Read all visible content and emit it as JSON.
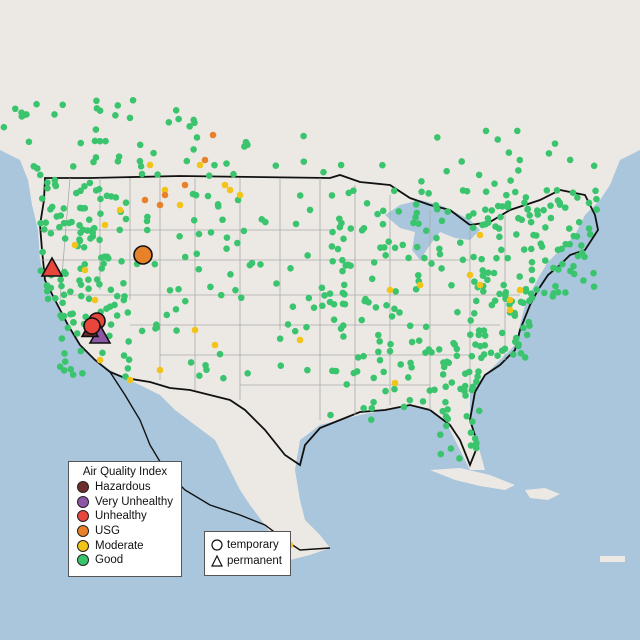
{
  "legend": {
    "title": "Air Quality Index",
    "categories": [
      {
        "label": "Hazardous",
        "color": "#6d2d2a"
      },
      {
        "label": "Very Unhealthy",
        "color": "#8e57a5"
      },
      {
        "label": "Unhealthy",
        "color": "#e8453c"
      },
      {
        "label": "USG",
        "color": "#e8822a"
      },
      {
        "label": "Moderate",
        "color": "#f2c318"
      },
      {
        "label": "Good",
        "color": "#3bc46e"
      }
    ]
  },
  "type_legend": {
    "items": [
      {
        "label": "temporary",
        "shape": "circle"
      },
      {
        "label": "permanent",
        "shape": "triangle"
      }
    ]
  },
  "map": {
    "ocean_color": "#a9c6dc",
    "land_color": "#ece9e4",
    "us_land_color": "#e9e7e2",
    "border_color": "#111111",
    "state_line_color": "#aaaaaa",
    "notable_sites": [
      {
        "category": "Unhealthy",
        "shape": "triangle"
      },
      {
        "category": "USG",
        "shape": "circle"
      },
      {
        "category": "Unhealthy",
        "shape": "circle"
      },
      {
        "category": "Very Unhealthy",
        "shape": "triangle"
      },
      {
        "category": "Hazardous",
        "shape": "triangle"
      },
      {
        "category": "Unhealthy",
        "shape": "circle"
      }
    ]
  }
}
